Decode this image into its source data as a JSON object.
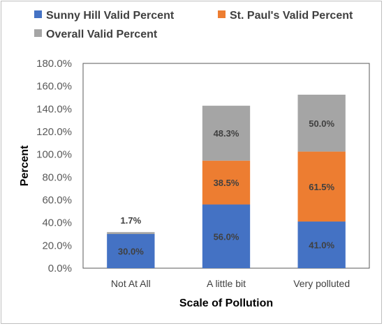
{
  "chart_data": {
    "type": "bar",
    "stacked": true,
    "categories": [
      "Not At All",
      "A little bit",
      "Very polluted"
    ],
    "series": [
      {
        "name": "Sunny Hill Valid Percent",
        "values": [
          30.0,
          56.0,
          41.0
        ],
        "labels": [
          "30.0%",
          "56.0%",
          "41.0%"
        ],
        "color": "#4472c4"
      },
      {
        "name": "St. Paul's Valid Percent",
        "values": [
          0.0,
          38.5,
          61.5
        ],
        "labels": [
          "",
          "38.5%",
          "61.5%"
        ],
        "color": "#ed7d31"
      },
      {
        "name": "Overall Valid Percent",
        "values": [
          1.7,
          48.3,
          50.0
        ],
        "labels": [
          "1.7%",
          "48.3%",
          "50.0%"
        ],
        "color": "#a5a5a5"
      }
    ],
    "xlabel": "Scale of Pollution",
    "ylabel": "Percent",
    "ylim": [
      0,
      180
    ],
    "yticks": [
      "0.0%",
      "20.0%",
      "40.0%",
      "60.0%",
      "80.0%",
      "100.0%",
      "120.0%",
      "140.0%",
      "160.0%",
      "180.0%"
    ],
    "legend_position": "top",
    "grid": false
  }
}
